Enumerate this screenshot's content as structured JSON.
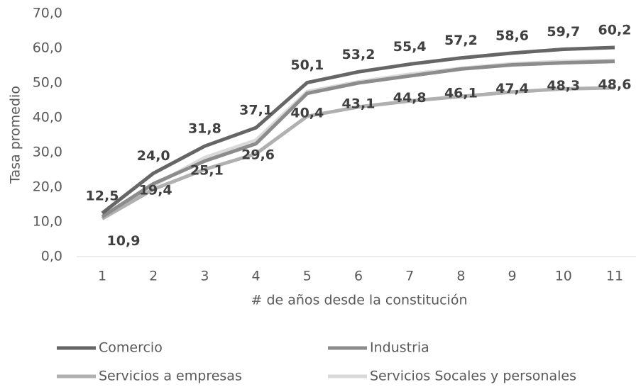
{
  "chart_data": {
    "type": "line",
    "x_label": "# de años desde la constitución",
    "y_label": "Tasa promedio",
    "categories": [
      "1",
      "2",
      "3",
      "4",
      "5",
      "6",
      "7",
      "8",
      "9",
      "10",
      "11"
    ],
    "ylim": [
      0,
      70
    ],
    "yticks": [
      {
        "value": 0,
        "label": "0,0"
      },
      {
        "value": 10,
        "label": "10,0"
      },
      {
        "value": 20,
        "label": "20,0"
      },
      {
        "value": 30,
        "label": "30,0"
      },
      {
        "value": 40,
        "label": "40,0"
      },
      {
        "value": 50,
        "label": "50,0"
      },
      {
        "value": 60,
        "label": "60,0"
      },
      {
        "value": 70,
        "label": "70,0"
      }
    ],
    "series": [
      {
        "name": "Comercio",
        "color": "#666666",
        "values": [
          12.5,
          24.0,
          31.8,
          37.1,
          50.1,
          53.2,
          55.4,
          57.2,
          58.6,
          59.7,
          60.2
        ],
        "value_labels": [
          "12,5",
          "24,0",
          "31,8",
          "37,1",
          "50,1",
          "53,2",
          "55,4",
          "57,2",
          "58,6",
          "59,7",
          "60,2"
        ]
      },
      {
        "name": "Industria",
        "color": "#8c8c8c",
        "values": [
          11.5,
          21.0,
          27.5,
          32.5,
          47.0,
          50.0,
          52.0,
          54.0,
          55.2,
          55.8,
          56.2
        ]
      },
      {
        "name": "Servicios a empresas",
        "color": "#b0b0b0",
        "values": [
          10.9,
          19.4,
          25.1,
          29.6,
          40.4,
          43.1,
          44.8,
          46.1,
          47.4,
          48.3,
          48.6
        ],
        "value_labels": [
          "10,9",
          "19,4",
          "25,1",
          "29,6",
          "40,4",
          "43,1",
          "44,8",
          "46,1",
          "47,4",
          "48,3",
          "48,6"
        ]
      },
      {
        "name": "Servicios Socales y personales",
        "color": "#d9d9d9",
        "values": [
          11.0,
          20.5,
          28.5,
          33.5,
          47.5,
          50.3,
          52.5,
          54.2,
          55.5,
          56.2,
          56.5
        ]
      }
    ],
    "legend": "bottom"
  }
}
